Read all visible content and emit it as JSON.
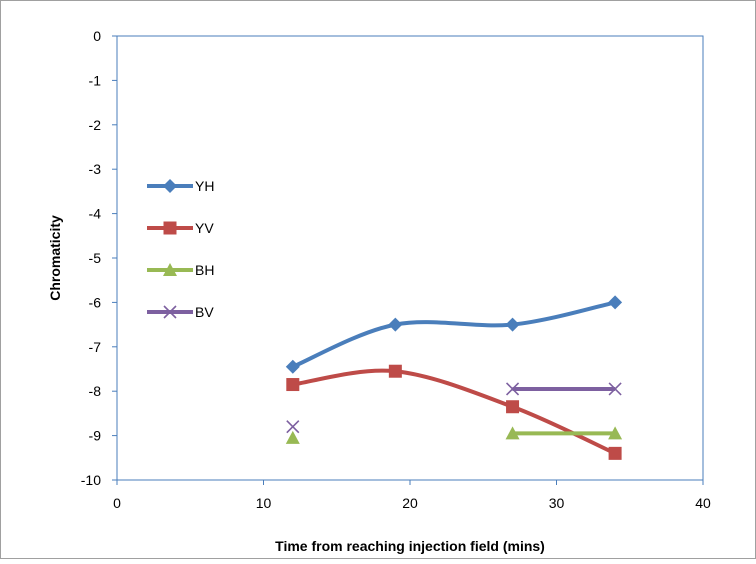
{
  "chart_data": {
    "type": "line",
    "xlabel": "Time from reaching injection field (mins)",
    "ylabel": "Chromaticity",
    "xlim": [
      0,
      40
    ],
    "ylim": [
      -10,
      0
    ],
    "xticks": [
      "0",
      "10",
      "20",
      "30",
      "40"
    ],
    "yticks": [
      "0",
      "-1",
      "-2",
      "-3",
      "-4",
      "-5",
      "-6",
      "-7",
      "-8",
      "-9",
      "-10"
    ],
    "grid": false,
    "legend_position": "left",
    "series": [
      {
        "name": "YH",
        "color": "#4a7ebb",
        "marker": "diamond",
        "smooth": true,
        "points": [
          [
            12,
            -7.45
          ],
          [
            19,
            -6.5
          ],
          [
            27,
            -6.5
          ],
          [
            34,
            -6.0
          ]
        ]
      },
      {
        "name": "YV",
        "color": "#be4b48",
        "marker": "square",
        "smooth": true,
        "points": [
          [
            12,
            -7.85
          ],
          [
            19,
            -7.55
          ],
          [
            27,
            -8.35
          ],
          [
            34,
            -9.4
          ]
        ]
      },
      {
        "name": "BH",
        "color": "#98b954",
        "marker": "triangle",
        "smooth": false,
        "points": [
          [
            12,
            -9.05
          ],
          [
            27,
            -8.95
          ],
          [
            34,
            -8.95
          ]
        ],
        "segments": [
          [
            1,
            2
          ]
        ]
      },
      {
        "name": "BV",
        "color": "#7d60a0",
        "marker": "x",
        "smooth": false,
        "points": [
          [
            12,
            -8.8
          ],
          [
            27,
            -7.95
          ],
          [
            34,
            -7.95
          ]
        ],
        "segments": [
          [
            1,
            2
          ]
        ]
      }
    ]
  }
}
